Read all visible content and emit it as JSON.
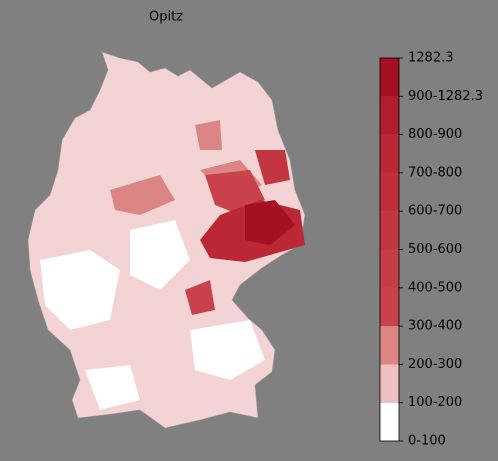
{
  "map": {
    "title": "Opitz",
    "colorbar": {
      "labels": [
        "0-100",
        "100-200",
        "200-300",
        "300-400",
        "400-500",
        "500-600",
        "600-700",
        "700-800",
        "800-900",
        "900-1282.3",
        "1282.3"
      ],
      "colors": [
        "#ffffff",
        "#efbfbf",
        "#dc8585",
        "#c9424b",
        "#c63d46",
        "#c3363f",
        "#bf2f3a",
        "#bb2734",
        "#b21d2d",
        "#a50f22"
      ]
    }
  }
}
